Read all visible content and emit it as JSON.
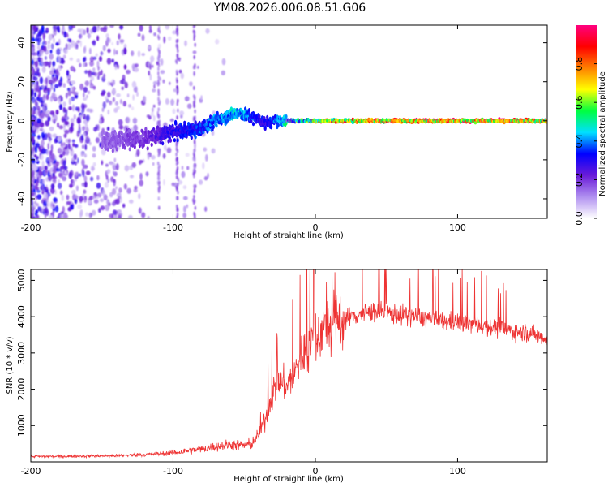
{
  "title": "YM08.2026.006.08.51.G06",
  "chart_data": [
    {
      "type": "heatmap",
      "title": "YM08.2026.006.08.51.G06",
      "xlabel": "Height of straight line (km)",
      "ylabel": "Frequency (Hz)",
      "xlim": [
        -200,
        163
      ],
      "ylim": [
        -50,
        49
      ],
      "x_ticks": [
        -200,
        -100,
        0,
        100
      ],
      "y_ticks": [
        -40,
        -20,
        0,
        20,
        40
      ],
      "colorbar": {
        "label": "Normalized spectral amplitude",
        "range": [
          0.0,
          1.0
        ],
        "ticks": [
          0.0,
          0.2,
          0.4,
          0.6,
          0.8
        ],
        "tick_labels": [
          "0.0",
          "0.2",
          "0.4",
          "0.6",
          "0.8"
        ],
        "colors": [
          "#ffffff",
          "#b090f0",
          "#6a1bd8",
          "#0000ff",
          "#00e0ff",
          "#00ff40",
          "#ffff00",
          "#ff8000",
          "#ff0000",
          "#ff007f"
        ]
      },
      "ridge": {
        "description_points_x": [
          -150,
          -120,
          -100,
          -80,
          -65,
          -55,
          -45,
          -35,
          -25,
          -15,
          0,
          50,
          100,
          160
        ],
        "frequency_hz": [
          -10,
          -9,
          -6,
          -4,
          2,
          4,
          2,
          -1,
          0,
          0,
          0,
          0,
          0,
          0
        ],
        "amplitude": [
          0.15,
          0.2,
          0.3,
          0.35,
          0.4,
          0.45,
          0.35,
          0.3,
          0.4,
          0.6,
          0.8,
          0.95,
          0.95,
          0.9
        ]
      }
    },
    {
      "type": "line",
      "xlabel": "Height of straight line (km)",
      "ylabel": "SNR (10 * v/v)",
      "xlim": [
        -200,
        163
      ],
      "ylim": [
        0,
        5300
      ],
      "x_ticks": [
        -200,
        -100,
        0,
        100
      ],
      "y_ticks": [
        1000,
        2000,
        3000,
        4000,
        5000
      ],
      "color": "#ee3333",
      "series": [
        {
          "name": "SNR",
          "x": [
            -200,
            -180,
            -160,
            -140,
            -120,
            -100,
            -90,
            -80,
            -70,
            -60,
            -50,
            -45,
            -40,
            -35,
            -30,
            -25,
            -20,
            -15,
            -10,
            -5,
            0,
            5,
            10,
            15,
            20,
            30,
            40,
            50,
            60,
            70,
            80,
            90,
            100,
            110,
            120,
            130,
            140,
            150,
            163
          ],
          "values": [
            150,
            150,
            160,
            170,
            200,
            250,
            300,
            350,
            420,
            480,
            450,
            500,
            700,
            1200,
            1900,
            2200,
            2100,
            2400,
            2900,
            3200,
            3450,
            3650,
            3750,
            3850,
            3950,
            4050,
            4150,
            4100,
            4050,
            4000,
            3950,
            3850,
            3850,
            3800,
            3750,
            3650,
            3600,
            3550,
            3400
          ]
        }
      ]
    }
  ]
}
